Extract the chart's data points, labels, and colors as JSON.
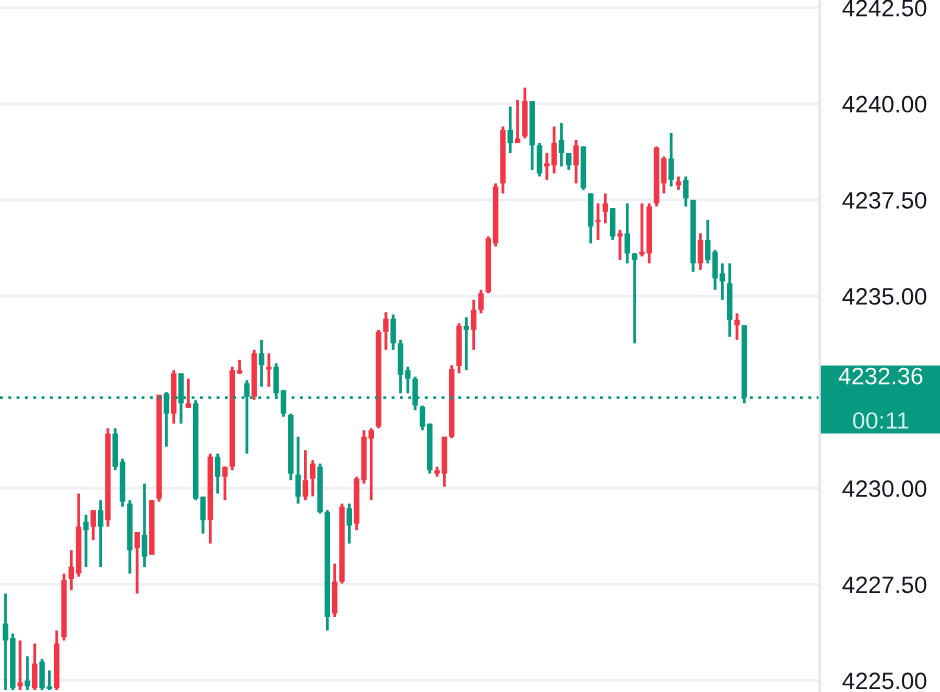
{
  "chart_data": {
    "type": "candlestick",
    "categories": [
      null,
      null,
      null,
      null,
      null,
      null,
      null,
      null,
      null,
      null,
      null,
      null,
      null,
      null,
      null,
      null,
      null,
      null,
      null,
      null,
      null,
      null,
      null,
      null,
      null,
      null,
      null,
      null,
      null,
      null,
      null,
      null,
      null,
      null,
      null,
      null,
      null,
      null,
      null,
      null,
      null,
      null,
      null,
      null,
      null,
      null,
      null,
      null,
      null,
      null,
      null,
      null,
      null,
      null,
      null,
      null,
      null,
      null,
      null,
      null,
      null,
      null,
      null,
      null,
      null,
      null,
      null,
      null,
      null,
      null,
      null,
      null,
      null,
      null,
      null,
      null,
      null,
      null,
      null,
      null,
      null,
      null,
      null,
      null,
      null,
      null,
      null,
      null,
      null,
      null,
      null,
      null,
      null,
      null,
      null,
      null,
      null,
      null,
      null,
      null,
      null,
      null
    ],
    "ohlc": [
      [
        4226.48,
        4227.26,
        4224.75,
        4226.04
      ],
      [
        4226.1,
        4226.22,
        4224.75,
        4224.8
      ],
      [
        4224.85,
        4226.04,
        4224.75,
        4224.95
      ],
      [
        4225.0,
        4225.63,
        4224.75,
        4224.85
      ],
      [
        4224.8,
        4225.96,
        4224.75,
        4225.44
      ],
      [
        4225.49,
        4225.56,
        4224.75,
        4224.8
      ],
      [
        4224.85,
        4225.26,
        4224.75,
        4224.78
      ],
      [
        4224.8,
        4226.3,
        4224.75,
        4225.96
      ],
      [
        4226.13,
        4227.78,
        4226.04,
        4227.61
      ],
      [
        4227.64,
        4228.39,
        4227.35,
        4227.96
      ],
      [
        4227.78,
        4229.86,
        4227.7,
        4229.0
      ],
      [
        4229.13,
        4229.31,
        4227.95,
        4228.91
      ],
      [
        4229.0,
        4229.43,
        4228.65,
        4229.43
      ],
      [
        4229.43,
        4229.69,
        4227.95,
        4229.0
      ],
      [
        4229.17,
        4231.56,
        4229.0,
        4231.42
      ],
      [
        4231.42,
        4231.56,
        4230.47,
        4230.56
      ],
      [
        4230.69,
        4230.77,
        4229.52,
        4229.65
      ],
      [
        4229.6,
        4229.69,
        4227.78,
        4228.39
      ],
      [
        4228.44,
        4228.86,
        4227.26,
        4228.86
      ],
      [
        4228.79,
        4230.12,
        4227.95,
        4228.22
      ],
      [
        4228.27,
        4229.69,
        4228.27,
        4229.69
      ],
      [
        4229.73,
        4232.43,
        4229.65,
        4232.43
      ],
      [
        4232.47,
        4232.5,
        4231.08,
        4231.94
      ],
      [
        4231.94,
        4233.07,
        4231.68,
        4232.99
      ],
      [
        4232.99,
        4232.99,
        4231.68,
        4232.21
      ],
      [
        4232.09,
        4232.85,
        4232.09,
        4232.21
      ],
      [
        4232.21,
        4232.29,
        4229.69,
        4229.73
      ],
      [
        4229.78,
        4229.78,
        4228.82,
        4229.17
      ],
      [
        4229.17,
        4230.9,
        4228.56,
        4230.82
      ],
      [
        4230.82,
        4230.9,
        4229.86,
        4230.3
      ],
      [
        4230.3,
        4230.56,
        4229.69,
        4230.56
      ],
      [
        4230.56,
        4233.16,
        4230.47,
        4233.07
      ],
      [
        4232.99,
        4233.34,
        4232.97,
        4233.07
      ],
      [
        4232.73,
        4232.81,
        4230.9,
        4232.38
      ],
      [
        4232.38,
        4233.6,
        4232.3,
        4233.51
      ],
      [
        4233.51,
        4233.86,
        4232.64,
        4233.2
      ],
      [
        4233.09,
        4233.51,
        4232.64,
        4233.16
      ],
      [
        4233.16,
        4233.25,
        4232.38,
        4232.47
      ],
      [
        4232.55,
        4232.55,
        4231.86,
        4231.94
      ],
      [
        4231.91,
        4231.94,
        4230.21,
        4230.38
      ],
      [
        4230.35,
        4231.34,
        4229.6,
        4229.78
      ],
      [
        4229.78,
        4230.99,
        4229.69,
        4230.21
      ],
      [
        4230.25,
        4230.73,
        4229.79,
        4230.64
      ],
      [
        4230.56,
        4230.64,
        4229.34,
        4229.38
      ],
      [
        4229.38,
        4229.43,
        4226.3,
        4226.65
      ],
      [
        4226.74,
        4228.04,
        4226.65,
        4227.57
      ],
      [
        4227.57,
        4229.6,
        4227.52,
        4229.52
      ],
      [
        4229.48,
        4229.6,
        4228.56,
        4229.03
      ],
      [
        4229.08,
        4230.3,
        4228.91,
        4230.25
      ],
      [
        4230.21,
        4231.51,
        4230.12,
        4231.34
      ],
      [
        4231.29,
        4231.56,
        4229.69,
        4231.51
      ],
      [
        4231.6,
        4234.12,
        4231.56,
        4234.07
      ],
      [
        4234.07,
        4234.58,
        4233.6,
        4234.41
      ],
      [
        4234.41,
        4234.52,
        4233.6,
        4233.77
      ],
      [
        4233.77,
        4233.86,
        4232.47,
        4232.95
      ],
      [
        4233.07,
        4233.16,
        4232.47,
        4232.85
      ],
      [
        4232.85,
        4232.9,
        4232.03,
        4232.15
      ],
      [
        4232.12,
        4232.15,
        4231.51,
        4231.6
      ],
      [
        4231.68,
        4231.68,
        4230.38,
        4230.47
      ],
      [
        4230.38,
        4230.56,
        4230.3,
        4230.47
      ],
      [
        4230.38,
        4231.34,
        4230.04,
        4231.34
      ],
      [
        4231.34,
        4233.2,
        4231.3,
        4233.1
      ],
      [
        4233.18,
        4234.29,
        4232.99,
        4234.22
      ],
      [
        4234.22,
        4234.45,
        4233.07,
        4234.12
      ],
      [
        4234.12,
        4234.9,
        4233.6,
        4234.64
      ],
      [
        4234.64,
        4235.16,
        4234.55,
        4235.07
      ],
      [
        4235.1,
        4236.55,
        4235.07,
        4236.5
      ],
      [
        4236.37,
        4237.93,
        4236.29,
        4237.85
      ],
      [
        4237.93,
        4239.41,
        4237.67,
        4239.32
      ],
      [
        4239.32,
        4239.93,
        4238.72,
        4238.98
      ],
      [
        4238.98,
        4240.1,
        4238.98,
        4239.1
      ],
      [
        4239.15,
        4240.42,
        4239.1,
        4240.07
      ],
      [
        4240.07,
        4240.07,
        4238.28,
        4238.92
      ],
      [
        4238.92,
        4238.98,
        4238.11,
        4238.19
      ],
      [
        4238.37,
        4238.72,
        4238.02,
        4238.45
      ],
      [
        4238.4,
        4239.41,
        4238.19,
        4238.98
      ],
      [
        4239.06,
        4239.5,
        4238.37,
        4238.72
      ],
      [
        4238.72,
        4238.72,
        4238.28,
        4238.4
      ],
      [
        4238.4,
        4239.06,
        4237.93,
        4238.92
      ],
      [
        4238.89,
        4238.89,
        4237.76,
        4237.81
      ],
      [
        4237.67,
        4237.67,
        4236.37,
        4236.81
      ],
      [
        4236.93,
        4237.41,
        4236.46,
        4236.98
      ],
      [
        4237.19,
        4237.67,
        4236.89,
        4237.41
      ],
      [
        4237.29,
        4237.29,
        4236.46,
        4236.55
      ],
      [
        4236.55,
        4236.72,
        4235.94,
        4236.63
      ],
      [
        4236.63,
        4237.41,
        4235.85,
        4236.11
      ],
      [
        4236.11,
        4236.11,
        4233.77,
        4235.94
      ],
      [
        4236.08,
        4237.41,
        4236.03,
        4236.15
      ],
      [
        4236.11,
        4237.41,
        4235.85,
        4237.33
      ],
      [
        4237.41,
        4238.89,
        4237.33,
        4238.86
      ],
      [
        4237.93,
        4238.63,
        4237.67,
        4238.58
      ],
      [
        4238.58,
        4239.24,
        4237.85,
        4238.02
      ],
      [
        4237.88,
        4238.11,
        4237.76,
        4237.98
      ],
      [
        4238.02,
        4238.11,
        4237.33,
        4237.54
      ],
      [
        4237.5,
        4237.5,
        4235.63,
        4235.85
      ],
      [
        4235.85,
        4236.63,
        4235.68,
        4236.46
      ],
      [
        4236.46,
        4236.98,
        4235.85,
        4235.94
      ],
      [
        4236.15,
        4236.2,
        4235.16,
        4235.46
      ],
      [
        4235.59,
        4235.85,
        4234.9,
        4235.38
      ],
      [
        4235.33,
        4235.85,
        4233.94,
        4234.38
      ],
      [
        4234.24,
        4234.55,
        4233.86,
        4234.38
      ],
      [
        4234.24,
        4234.24,
        4232.21,
        4232.36
      ]
    ],
    "colors": [
      "#089981",
      "#089981",
      "#f23645",
      "#089981",
      "#f23645",
      "#089981",
      "#089981",
      "#f23645",
      "#f23645",
      "#f23645",
      "#f23645",
      "#089981",
      "#f23645",
      "#089981",
      "#f23645",
      "#089981",
      "#089981",
      "#089981",
      "#f23645",
      "#089981",
      "#f23645",
      "#f23645",
      "#089981",
      "#f23645",
      "#089981",
      "#f23645",
      "#089981",
      "#089981",
      "#f23645",
      "#089981",
      "#f23645",
      "#f23645",
      "#f23645",
      "#089981",
      "#f23645",
      "#089981",
      "#f23645",
      "#089981",
      "#089981",
      "#089981",
      "#089981",
      "#f23645",
      "#f23645",
      "#089981",
      "#089981",
      "#f23645",
      "#f23645",
      "#089981",
      "#f23645",
      "#f23645",
      "#f23645",
      "#f23645",
      "#f23645",
      "#089981",
      "#089981",
      "#089981",
      "#089981",
      "#089981",
      "#089981",
      "#f23645",
      "#f23645",
      "#f23645",
      "#f23645",
      "#089981",
      "#f23645",
      "#f23645",
      "#f23645",
      "#f23645",
      "#f23645",
      "#089981",
      "#f23645",
      "#f23645",
      "#089981",
      "#089981",
      "#f23645",
      "#f23645",
      "#089981",
      "#089981",
      "#f23645",
      "#089981",
      "#089981",
      "#f23645",
      "#f23645",
      "#089981",
      "#f23645",
      "#089981",
      "#089981",
      "#f23645",
      "#f23645",
      "#f23645",
      "#f23645",
      "#089981",
      "#f23645",
      "#089981",
      "#089981",
      "#f23645",
      "#089981",
      "#089981",
      "#089981",
      "#089981",
      "#f23645",
      "#089981"
    ],
    "ylim": [
      4224.7,
      4242.7
    ],
    "yticks": [
      {
        "value": 4225,
        "label": "4225.00"
      },
      {
        "value": 4227.5,
        "label": "4227.50"
      },
      {
        "value": 4230,
        "label": "4230.00"
      },
      {
        "value": 4235,
        "label": "4235.00"
      },
      {
        "value": 4237.5,
        "label": "4237.50"
      },
      {
        "value": 4240,
        "label": "4240.00"
      },
      {
        "value": 4242.5,
        "label": "4242.50"
      }
    ],
    "ref_lines": [
      {
        "axis": "y",
        "value": 4232.36,
        "label": "4232.36",
        "color": "#089981",
        "line_style": "dotted"
      }
    ],
    "annotations": [
      "00:11"
    ],
    "grid": "y",
    "tick_labels": "y"
  }
}
